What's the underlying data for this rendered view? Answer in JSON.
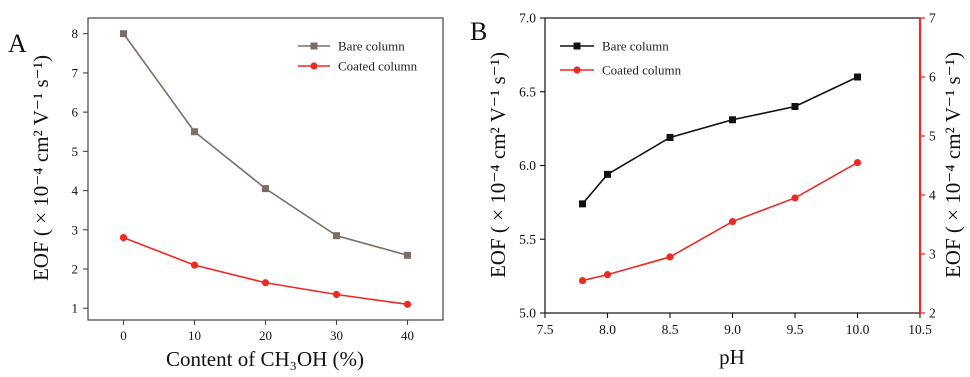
{
  "figure": {
    "panel_a_label": "A",
    "panel_b_label": "B"
  },
  "chart_data": [
    {
      "type": "line",
      "panel": "A",
      "xlabel": "Content of CH₃OH (%)",
      "ylabel": "EOF ( × 10⁻⁴ cm² V⁻¹ s⁻¹)",
      "xlim": [
        -5,
        45
      ],
      "ylim": [
        0.7,
        8.4
      ],
      "xticks": [
        0,
        10,
        20,
        30,
        40
      ],
      "xtick_labels": [
        "0",
        "10",
        "20",
        "30",
        "40"
      ],
      "yticks": [
        1,
        2,
        3,
        4,
        5,
        6,
        7,
        8
      ],
      "ytick_labels": [
        "1",
        "2",
        "3",
        "4",
        "5",
        "6",
        "7",
        "8"
      ],
      "grid": false,
      "legend": "top-right",
      "series": [
        {
          "name": "Bare column",
          "color": "#7d6d66",
          "marker": "square",
          "x": [
            0,
            10,
            20,
            30,
            40
          ],
          "y": [
            8.0,
            5.5,
            4.05,
            2.85,
            2.35
          ]
        },
        {
          "name": "Coated column",
          "color": "#ee2a24",
          "marker": "circle",
          "x": [
            0,
            10,
            20,
            30,
            40
          ],
          "y": [
            2.8,
            2.1,
            1.65,
            1.35,
            1.1
          ]
        }
      ]
    },
    {
      "type": "line",
      "panel": "B",
      "xlabel": "pH",
      "ylabel": "EOF ( × 10⁻⁴ cm² V⁻¹ s⁻¹)",
      "ylabel_right": "EOF ( × 10⁻⁴ cm² V⁻¹ s⁻¹)",
      "xlim": [
        7.5,
        10.5
      ],
      "ylim_left": [
        5.0,
        7.0
      ],
      "ylim_right": [
        2,
        7
      ],
      "xticks": [
        7.5,
        8.0,
        8.5,
        9.0,
        9.5,
        10.0,
        10.5
      ],
      "xtick_labels": [
        "7.5",
        "8.0",
        "8.5",
        "9.0",
        "9.5",
        "10.0",
        "10.5"
      ],
      "yticks_left": [
        5.0,
        5.5,
        6.0,
        6.5,
        7.0
      ],
      "ytick_labels_left": [
        "5.0",
        "5.5",
        "6.0",
        "6.5",
        "7.0"
      ],
      "yticks_right": [
        2,
        3,
        4,
        5,
        6,
        7
      ],
      "ytick_labels_right": [
        "2",
        "3",
        "4",
        "5",
        "6",
        "7"
      ],
      "right_axis_color": "#ee2a24",
      "grid": false,
      "legend": "top-left",
      "series": [
        {
          "name": "Bare column",
          "color": "#111111",
          "marker": "square",
          "axis": "left",
          "x": [
            7.8,
            8.0,
            8.5,
            9.0,
            9.5,
            10.0
          ],
          "y": [
            5.74,
            5.94,
            6.19,
            6.31,
            6.4,
            6.6
          ]
        },
        {
          "name": "Coated column",
          "color": "#ee2a24",
          "marker": "circle",
          "axis": "right",
          "x": [
            7.8,
            8.0,
            8.5,
            9.0,
            9.5,
            10.0
          ],
          "y": [
            2.55,
            2.65,
            2.95,
            3.55,
            3.95,
            4.55
          ]
        }
      ]
    }
  ]
}
